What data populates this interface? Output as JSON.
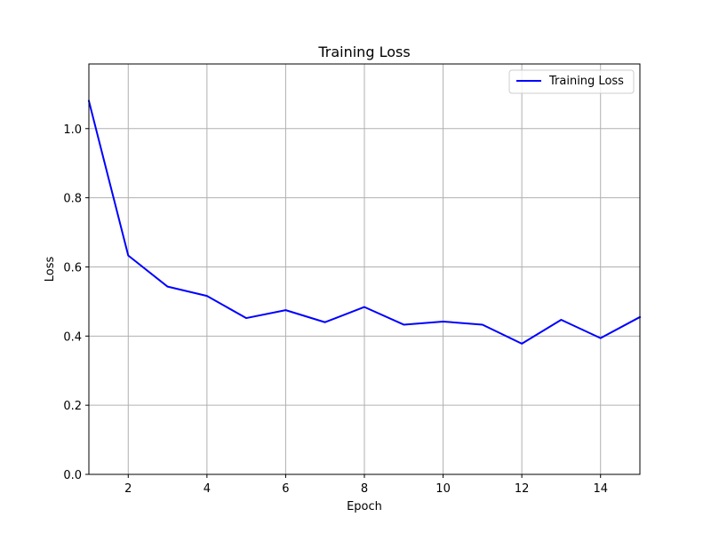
{
  "chart_data": {
    "type": "line",
    "title": "Training Loss",
    "xlabel": "Epoch",
    "ylabel": "Loss",
    "xlim": [
      1,
      15
    ],
    "ylim": [
      0,
      1.187
    ],
    "xticks": [
      2,
      4,
      6,
      8,
      10,
      12,
      14
    ],
    "xtick_labels": [
      "2",
      "4",
      "6",
      "8",
      "10",
      "12",
      "14"
    ],
    "yticks": [
      0.0,
      0.2,
      0.4,
      0.6,
      0.8,
      1.0
    ],
    "ytick_labels": [
      "0.0",
      "0.2",
      "0.4",
      "0.6",
      "0.8",
      "1.0"
    ],
    "grid": true,
    "legend_position": "top-right",
    "x": [
      1,
      2,
      3,
      4,
      5,
      6,
      7,
      8,
      9,
      10,
      11,
      12,
      13,
      14,
      15
    ],
    "series": [
      {
        "name": "Training Loss",
        "color": "#0000ff",
        "values": [
          1.08,
          0.633,
          0.543,
          0.516,
          0.452,
          0.475,
          0.44,
          0.484,
          0.433,
          0.442,
          0.433,
          0.378,
          0.447,
          0.394,
          0.455
        ]
      }
    ]
  }
}
